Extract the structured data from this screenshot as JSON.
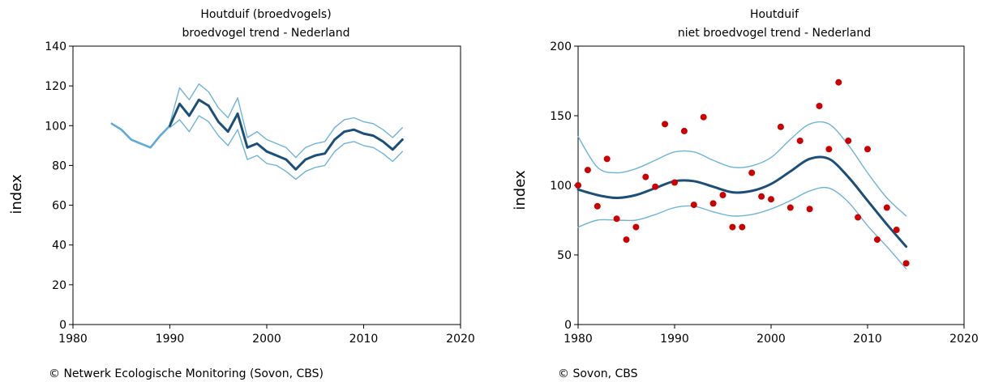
{
  "colors": {
    "trend": "#1b4f7a",
    "band": "#6fb3d6",
    "early": "#5ea8da",
    "points": "#cc0000",
    "axis": "#000000"
  },
  "credits": {
    "left": "© Netwerk Ecologische Monitoring (Sovon, CBS)",
    "right": "© Sovon, CBS"
  },
  "chart_data": [
    {
      "type": "line",
      "title": "Houtduif (broedvogels)",
      "subtitle": "broedvogel trend - Nederland",
      "ylabel": "index",
      "xlim": [
        1980,
        2020
      ],
      "ylim": [
        0,
        140
      ],
      "xticks": [
        1980,
        1990,
        2000,
        2010,
        2020
      ],
      "yticks": [
        0,
        20,
        40,
        60,
        80,
        100,
        120,
        140
      ],
      "series": [
        {
          "role": "early",
          "x": [
            1984,
            1985,
            1986,
            1987,
            1988,
            1989,
            1990
          ],
          "y": [
            101,
            98,
            93,
            91,
            89,
            95,
            100
          ]
        },
        {
          "role": "upper",
          "x": [
            1990,
            1991,
            1992,
            1993,
            1994,
            1995,
            1996,
            1997,
            1998,
            1999,
            2000,
            2001,
            2002,
            2003,
            2004,
            2005,
            2006,
            2007,
            2008,
            2009,
            2010,
            2011,
            2012,
            2013,
            2014
          ],
          "y": [
            101,
            119,
            113,
            121,
            117,
            109,
            104,
            114,
            94,
            97,
            93,
            91,
            89,
            84,
            89,
            91,
            92,
            99,
            103,
            104,
            102,
            101,
            98,
            94,
            99
          ]
        },
        {
          "role": "trend",
          "x": [
            1990,
            1991,
            1992,
            1993,
            1994,
            1995,
            1996,
            1997,
            1998,
            1999,
            2000,
            2001,
            2002,
            2003,
            2004,
            2005,
            2006,
            2007,
            2008,
            2009,
            2010,
            2011,
            2012,
            2013,
            2014
          ],
          "y": [
            100,
            111,
            105,
            113,
            110,
            102,
            97,
            106,
            89,
            91,
            87,
            85,
            83,
            78,
            83,
            85,
            86,
            93,
            97,
            98,
            96,
            95,
            92,
            88,
            93
          ]
        },
        {
          "role": "lower",
          "x": [
            1990,
            1991,
            1992,
            1993,
            1994,
            1995,
            1996,
            1997,
            1998,
            1999,
            2000,
            2001,
            2002,
            2003,
            2004,
            2005,
            2006,
            2007,
            2008,
            2009,
            2010,
            2011,
            2012,
            2013,
            2014
          ],
          "y": [
            99,
            103,
            97,
            105,
            102,
            95,
            90,
            98,
            83,
            85,
            81,
            80,
            77,
            73,
            77,
            79,
            80,
            87,
            91,
            92,
            90,
            89,
            86,
            82,
            87
          ]
        }
      ]
    },
    {
      "type": "scatter",
      "title": "Houtduif",
      "subtitle": "niet broedvogel trend - Nederland",
      "ylabel": "index",
      "xlim": [
        1980,
        2020
      ],
      "ylim": [
        0,
        200
      ],
      "xticks": [
        1980,
        1990,
        2000,
        2010,
        2020
      ],
      "yticks": [
        0,
        50,
        100,
        150,
        200
      ],
      "points": {
        "x": [
          1980,
          1981,
          1982,
          1983,
          1984,
          1985,
          1986,
          1987,
          1988,
          1989,
          1990,
          1991,
          1992,
          1993,
          1994,
          1995,
          1996,
          1997,
          1998,
          1999,
          2000,
          2001,
          2002,
          2003,
          2004,
          2005,
          2006,
          2007,
          2008,
          2009,
          2010,
          2011,
          2012,
          2013,
          2014
        ],
        "y": [
          100,
          111,
          85,
          119,
          76,
          61,
          70,
          106,
          99,
          144,
          102,
          139,
          86,
          149,
          87,
          93,
          70,
          70,
          109,
          92,
          90,
          142,
          84,
          132,
          83,
          157,
          126,
          174,
          132,
          77,
          126,
          61,
          84,
          68,
          44
        ]
      },
      "series": [
        {
          "role": "upper",
          "x": [
            1980,
            1982,
            1984,
            1986,
            1988,
            1990,
            1992,
            1994,
            1996,
            1998,
            2000,
            2002,
            2004,
            2006,
            2008,
            2010,
            2012,
            2014
          ],
          "y": [
            135,
            113,
            109,
            112,
            118,
            124,
            124,
            118,
            113,
            114,
            120,
            133,
            144,
            144,
            129,
            109,
            91,
            78
          ]
        },
        {
          "role": "trend",
          "x": [
            1980,
            1982,
            1984,
            1986,
            1988,
            1990,
            1992,
            1994,
            1996,
            1998,
            2000,
            2002,
            2004,
            2006,
            2008,
            2010,
            2012,
            2014
          ],
          "y": [
            97,
            93,
            91,
            93,
            98,
            103,
            103,
            99,
            95,
            96,
            101,
            110,
            119,
            119,
            106,
            89,
            72,
            56
          ]
        },
        {
          "role": "lower",
          "x": [
            1980,
            1982,
            1984,
            1986,
            1988,
            1990,
            1992,
            1994,
            1996,
            1998,
            2000,
            2002,
            2004,
            2006,
            2008,
            2010,
            2012,
            2014
          ],
          "y": [
            70,
            75,
            75,
            75,
            79,
            84,
            85,
            81,
            78,
            79,
            83,
            89,
            96,
            98,
            88,
            71,
            56,
            40
          ]
        }
      ]
    }
  ]
}
